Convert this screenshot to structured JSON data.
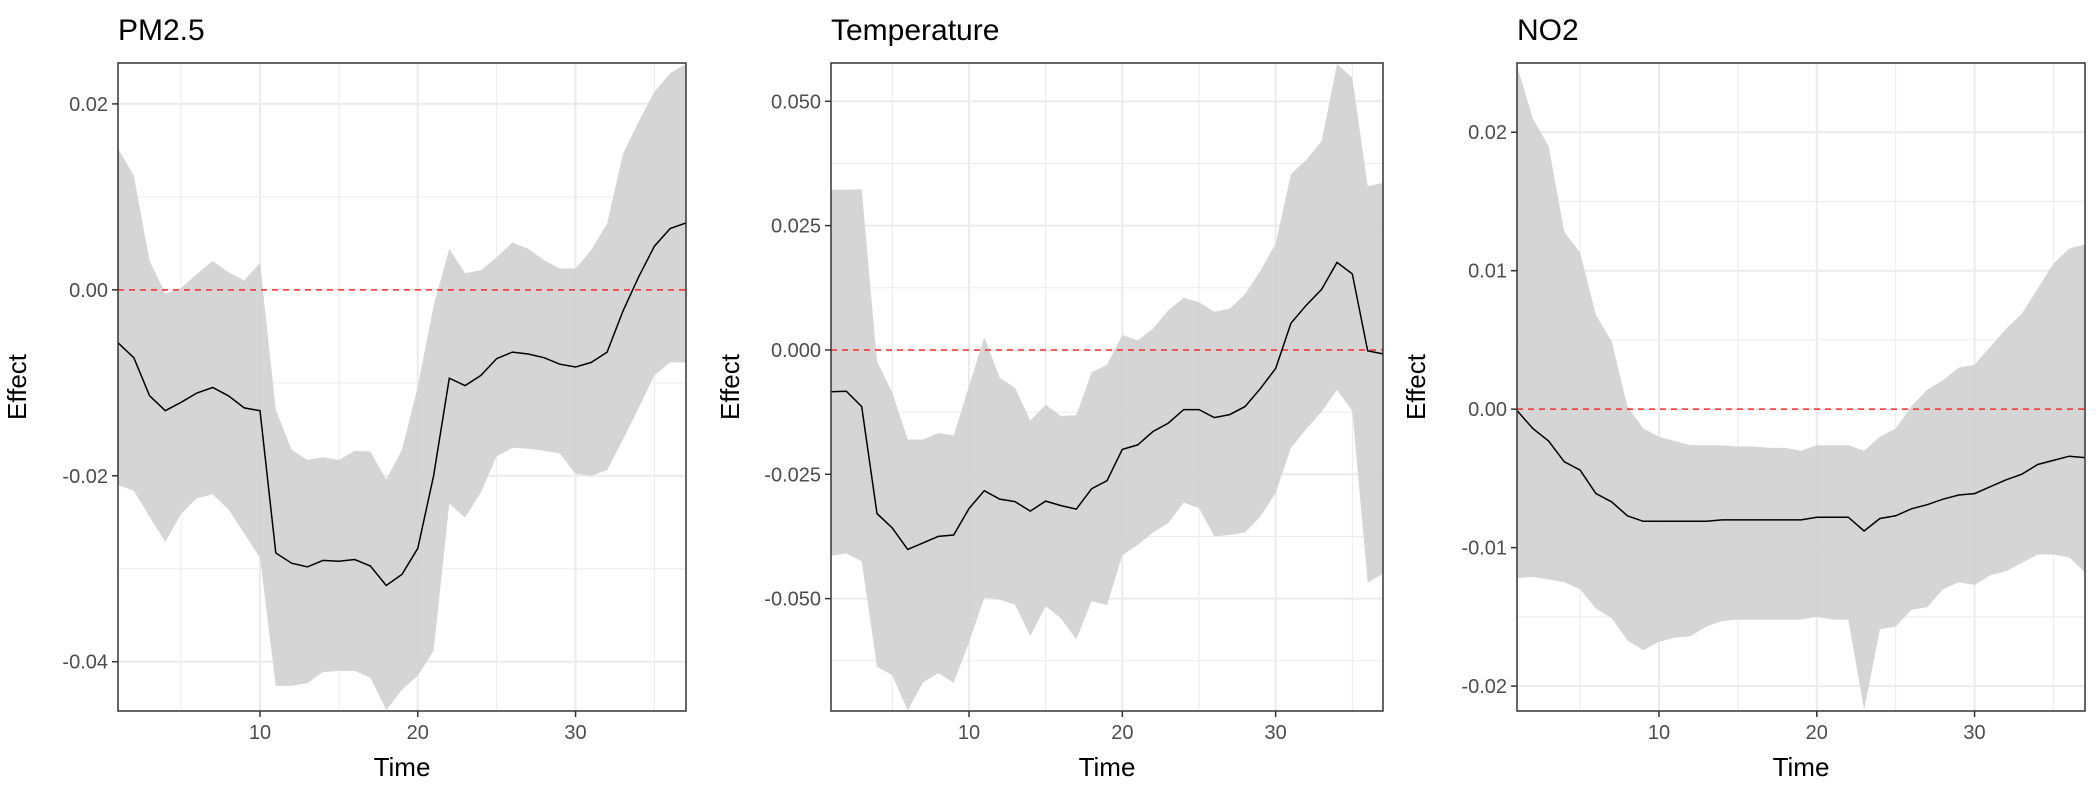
{
  "chart_data": [
    {
      "type": "line",
      "title": "PM2.5",
      "xlabel": "Time",
      "ylabel": "Effect",
      "xlim": [
        1,
        37
      ],
      "ylim": [
        -0.0453,
        0.0244
      ],
      "xticks": [
        10,
        20,
        30
      ],
      "xtick_labels": [
        "10",
        "20",
        "30"
      ],
      "yticks": [
        -0.04,
        -0.02,
        0.0,
        0.02
      ],
      "ytick_labels": [
        "-0.04",
        "-0.02",
        "0.00",
        "0.02"
      ],
      "grid": true,
      "reference_line": {
        "y": 0,
        "style": "dashed",
        "color": "#ff0000"
      },
      "ribbon_color": "#d3d3d3",
      "line_color": "#000000",
      "x": [
        1,
        2,
        3,
        4,
        5,
        6,
        7,
        8,
        9,
        10,
        11,
        12,
        13,
        14,
        15,
        16,
        17,
        18,
        19,
        20,
        21,
        22,
        23,
        24,
        25,
        26,
        27,
        28,
        29,
        30,
        31,
        32,
        33,
        34,
        35,
        36,
        37
      ],
      "estimate": [
        -0.0057,
        -0.0073,
        -0.0114,
        -0.013,
        -0.0121,
        -0.0111,
        -0.0105,
        -0.0114,
        -0.0127,
        -0.013,
        -0.0283,
        -0.0294,
        -0.0298,
        -0.0291,
        -0.0292,
        -0.029,
        -0.0297,
        -0.0318,
        -0.0306,
        -0.0278,
        -0.02,
        -0.0095,
        -0.0103,
        -0.0092,
        -0.0074,
        -0.0067,
        -0.0069,
        -0.0073,
        -0.008,
        -0.0083,
        -0.0078,
        -0.0067,
        -0.0023,
        0.0014,
        0.0047,
        0.0066,
        0.0072
      ],
      "upper": [
        0.0152,
        0.0123,
        0.0031,
        -0.0004,
        0.0002,
        0.0017,
        0.0031,
        0.0019,
        0.001,
        0.0029,
        -0.0129,
        -0.0172,
        -0.0183,
        -0.018,
        -0.0183,
        -0.0173,
        -0.0174,
        -0.0204,
        -0.0172,
        -0.0104,
        -0.0017,
        0.0044,
        0.0018,
        0.0021,
        0.0035,
        0.0051,
        0.0044,
        0.0032,
        0.0023,
        0.0023,
        0.0043,
        0.0071,
        0.0146,
        0.0181,
        0.0213,
        0.0233,
        0.0243
      ],
      "lower": [
        -0.021,
        -0.0216,
        -0.0244,
        -0.0271,
        -0.0241,
        -0.0224,
        -0.022,
        -0.0236,
        -0.0262,
        -0.0288,
        -0.0426,
        -0.0426,
        -0.0423,
        -0.0411,
        -0.041,
        -0.041,
        -0.0417,
        -0.0452,
        -0.043,
        -0.0415,
        -0.0388,
        -0.023,
        -0.0245,
        -0.0218,
        -0.0179,
        -0.017,
        -0.0171,
        -0.0173,
        -0.0176,
        -0.0198,
        -0.02,
        -0.0194,
        -0.0161,
        -0.0127,
        -0.0092,
        -0.0078,
        -0.0078
      ]
    },
    {
      "type": "line",
      "title": "Temperature",
      "xlabel": "Time",
      "ylabel": "Effect",
      "xlim": [
        1,
        37
      ],
      "ylim": [
        -0.0726,
        0.0577
      ],
      "xticks": [
        10,
        20,
        30
      ],
      "xtick_labels": [
        "10",
        "20",
        "30"
      ],
      "yticks": [
        -0.05,
        -0.025,
        0.0,
        0.025,
        0.05
      ],
      "ytick_labels": [
        "-0.050",
        "-0.025",
        "0.000",
        "0.025",
        "0.050"
      ],
      "grid": true,
      "reference_line": {
        "y": 0,
        "style": "dashed",
        "color": "#ff0000"
      },
      "ribbon_color": "#d3d3d3",
      "line_color": "#000000",
      "x": [
        1,
        2,
        3,
        4,
        5,
        6,
        7,
        8,
        9,
        10,
        11,
        12,
        13,
        14,
        15,
        16,
        17,
        18,
        19,
        20,
        21,
        22,
        23,
        24,
        25,
        26,
        27,
        28,
        29,
        30,
        31,
        32,
        33,
        34,
        35,
        36,
        37
      ],
      "estimate": [
        -0.0084,
        -0.0083,
        -0.0114,
        -0.0329,
        -0.0358,
        -0.0401,
        -0.0388,
        -0.0375,
        -0.0372,
        -0.0319,
        -0.0283,
        -0.03,
        -0.0305,
        -0.0324,
        -0.0304,
        -0.0313,
        -0.032,
        -0.0279,
        -0.0263,
        -0.02,
        -0.0191,
        -0.0164,
        -0.0147,
        -0.012,
        -0.012,
        -0.0136,
        -0.013,
        -0.0114,
        -0.0078,
        -0.0037,
        0.0054,
        0.009,
        0.0122,
        0.0176,
        0.0153,
        -0.0002,
        -0.0008
      ],
      "upper": [
        0.0322,
        0.0322,
        0.0323,
        -0.0023,
        -0.0086,
        -0.018,
        -0.018,
        -0.0167,
        -0.0172,
        -0.0073,
        0.0026,
        -0.0056,
        -0.0076,
        -0.0142,
        -0.011,
        -0.0133,
        -0.0131,
        -0.0045,
        -0.003,
        0.003,
        0.0019,
        0.0043,
        0.008,
        0.0105,
        0.0096,
        0.0077,
        0.0083,
        0.0112,
        0.0159,
        0.0214,
        0.0354,
        0.0382,
        0.042,
        0.0575,
        0.0547,
        0.0329,
        0.0336
      ],
      "lower": [
        -0.0414,
        -0.0409,
        -0.0425,
        -0.0637,
        -0.0654,
        -0.0725,
        -0.0668,
        -0.065,
        -0.0669,
        -0.0588,
        -0.0498,
        -0.0502,
        -0.0512,
        -0.0575,
        -0.0515,
        -0.054,
        -0.0582,
        -0.0505,
        -0.0513,
        -0.0413,
        -0.0392,
        -0.0367,
        -0.0348,
        -0.0307,
        -0.0318,
        -0.0375,
        -0.0372,
        -0.0367,
        -0.0335,
        -0.0287,
        -0.0197,
        -0.0159,
        -0.0124,
        -0.008,
        -0.0123,
        -0.0468,
        -0.045
      ]
    },
    {
      "type": "line",
      "title": "NO2",
      "xlabel": "Time",
      "ylabel": "Effect",
      "xlim": [
        1,
        37
      ],
      "ylim": [
        -0.0218,
        0.025
      ],
      "xticks": [
        10,
        20,
        30
      ],
      "xtick_labels": [
        "10",
        "20",
        "30"
      ],
      "yticks": [
        -0.02,
        -0.01,
        0.0,
        0.01,
        0.02
      ],
      "ytick_labels": [
        "-0.02",
        "-0.01",
        "0.00",
        "0.01",
        "0.02"
      ],
      "grid": true,
      "reference_line": {
        "y": 0,
        "style": "dashed",
        "color": "#ff0000"
      },
      "ribbon_color": "#d3d3d3",
      "line_color": "#000000",
      "x": [
        1,
        2,
        3,
        4,
        5,
        6,
        7,
        8,
        9,
        10,
        11,
        12,
        13,
        14,
        15,
        16,
        17,
        18,
        19,
        20,
        21,
        22,
        23,
        24,
        25,
        26,
        27,
        28,
        29,
        30,
        31,
        32,
        33,
        34,
        35,
        36,
        37
      ],
      "estimate": [
        -0.0001,
        -0.0014,
        -0.0023,
        -0.0038,
        -0.0044,
        -0.0061,
        -0.0067,
        -0.0077,
        -0.0081,
        -0.0081,
        -0.0081,
        -0.0081,
        -0.0081,
        -0.008,
        -0.008,
        -0.008,
        -0.008,
        -0.008,
        -0.008,
        -0.0078,
        -0.0078,
        -0.0078,
        -0.0088,
        -0.0079,
        -0.0077,
        -0.0072,
        -0.0069,
        -0.0065,
        -0.0062,
        -0.0061,
        -0.0056,
        -0.0051,
        -0.0047,
        -0.004,
        -0.0037,
        -0.0034,
        -0.0035
      ],
      "upper": [
        0.0248,
        0.021,
        0.019,
        0.0128,
        0.0113,
        0.0068,
        0.0049,
        0.0002,
        -0.0014,
        -0.002,
        -0.0023,
        -0.0026,
        -0.0026,
        -0.0026,
        -0.0027,
        -0.0027,
        -0.0028,
        -0.0028,
        -0.003,
        -0.0026,
        -0.0026,
        -0.0026,
        -0.003,
        -0.002,
        -0.0014,
        0.0002,
        0.0014,
        0.0021,
        0.003,
        0.0032,
        0.0045,
        0.0058,
        0.0069,
        0.0087,
        0.0105,
        0.0116,
        0.0119
      ],
      "lower": [
        -0.0122,
        -0.0121,
        -0.0123,
        -0.0125,
        -0.013,
        -0.0144,
        -0.0151,
        -0.0167,
        -0.0174,
        -0.0168,
        -0.0165,
        -0.0164,
        -0.0157,
        -0.0153,
        -0.0152,
        -0.0152,
        -0.0152,
        -0.0152,
        -0.0152,
        -0.015,
        -0.0152,
        -0.0152,
        -0.0217,
        -0.0159,
        -0.0157,
        -0.0145,
        -0.0143,
        -0.013,
        -0.0125,
        -0.0127,
        -0.012,
        -0.0117,
        -0.0111,
        -0.0105,
        -0.0105,
        -0.0107,
        -0.0118
      ]
    }
  ]
}
